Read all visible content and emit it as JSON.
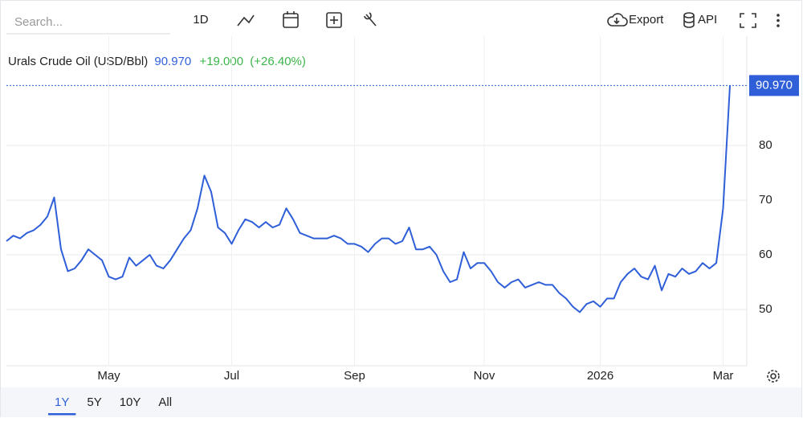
{
  "toolbar": {
    "search_placeholder": "Search...",
    "interval": "1D",
    "export": "Export",
    "api": "API"
  },
  "chart_data": {
    "type": "line",
    "title": "Urals Crude Oil (USD/Bbl)",
    "last": "90.970",
    "change": "+19.000",
    "change_pct": "(+26.40%)",
    "categories": [
      null,
      null,
      null,
      null,
      null,
      null,
      null,
      null,
      null,
      null,
      null,
      null,
      null,
      null,
      null,
      "May",
      null,
      null,
      null,
      null,
      null,
      null,
      null,
      null,
      null,
      null,
      null,
      null,
      null,
      null,
      null,
      null,
      null,
      "Jul",
      null,
      null,
      null,
      null,
      null,
      null,
      null,
      null,
      null,
      null,
      null,
      null,
      null,
      null,
      null,
      null,
      null,
      "Sep",
      null,
      null,
      null,
      null,
      null,
      null,
      null,
      null,
      null,
      null,
      null,
      null,
      null,
      null,
      null,
      null,
      null,
      null,
      "Nov",
      null,
      null,
      null,
      null,
      null,
      null,
      null,
      null,
      null,
      null,
      null,
      null,
      null,
      null,
      null,
      null,
      "2026",
      null,
      null,
      null,
      null,
      null,
      null,
      null,
      null,
      null,
      null,
      null,
      null,
      null,
      null,
      null,
      null,
      null,
      "Mar",
      null
    ],
    "values": [
      62.5,
      63.5,
      63,
      64,
      64.5,
      65.5,
      67,
      70.5,
      61,
      57,
      57.5,
      59,
      61,
      60,
      59,
      56,
      55.5,
      56,
      59.5,
      58,
      59,
      60,
      58,
      57.5,
      59,
      61,
      63,
      64.5,
      68.5,
      74.5,
      71.5,
      65,
      64,
      62,
      64.5,
      66.5,
      66,
      65,
      66,
      65,
      65.5,
      68.5,
      66.5,
      64,
      63.5,
      63,
      63,
      63,
      63.5,
      63,
      62,
      62,
      61.5,
      60.5,
      62,
      63,
      63,
      62,
      62.5,
      65,
      61,
      61,
      61.5,
      60,
      57,
      55,
      55.5,
      60.5,
      57.5,
      58.5,
      58.5,
      57,
      55,
      54,
      55,
      55.5,
      54,
      54.5,
      55,
      54.5,
      54.5,
      53,
      52,
      50.5,
      49.5,
      51,
      51.5,
      50.5,
      52,
      52,
      55,
      56.5,
      57.5,
      56,
      55.5,
      58,
      53.5,
      56.5,
      56,
      57.5,
      56.5,
      57,
      58.5,
      57.5,
      58.5,
      68.5,
      90.97
    ],
    "color": "#2f5fd8",
    "ylim": [
      39.7,
      100
    ],
    "yticks": [
      50,
      60,
      70,
      80
    ],
    "grid": true
  },
  "ranges": {
    "items": [
      "1Y",
      "5Y",
      "10Y",
      "All"
    ],
    "selected": 0
  }
}
